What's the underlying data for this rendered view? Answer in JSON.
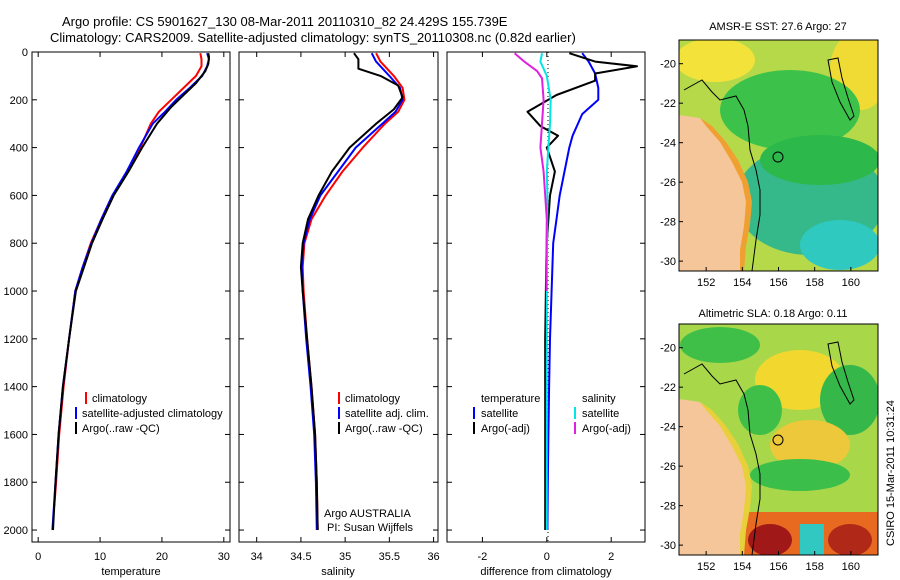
{
  "title": {
    "line1": "Argo profile: CS 5901627_130 08-Mar-2011 20110310_82 24.429S 155.739E",
    "line2": "Climatology: CARS2009. Satellite-adjusted climatology: synTS_20110308.nc (0.82d earlier)"
  },
  "colors": {
    "climatology": "#ff0000",
    "satellite": "#0000ff",
    "argo": "#000000",
    "salinity_satellite": "#00e5e5",
    "salinity_argo": "#e020e0",
    "land": "#f5c69a"
  },
  "icons": {
    "profile_marker": "circle-marker-icon"
  },
  "chart_data": [
    {
      "type": "line",
      "panel": "temperature",
      "xlabel": "temperature",
      "ylabel": "",
      "xlim": [
        -1,
        31
      ],
      "ylim": [
        2050,
        0
      ],
      "y_inverted": true,
      "xticks": [
        0,
        10,
        20,
        30
      ],
      "yticks": [
        0,
        200,
        400,
        600,
        800,
        1000,
        1200,
        1400,
        1600,
        1800,
        2000
      ],
      "legend": {
        "location": "lower-right",
        "entries": [
          "climatology",
          "satellite-adjusted climatology",
          "Argo(..raw -QC)"
        ]
      },
      "series": [
        {
          "name": "climatology",
          "color_key": "climatology",
          "points": [
            [
              26.2,
              5
            ],
            [
              26.4,
              30
            ],
            [
              26.4,
              60
            ],
            [
              25.5,
              100
            ],
            [
              23.5,
              150
            ],
            [
              21.5,
              200
            ],
            [
              19.5,
              250
            ],
            [
              18.2,
              300
            ],
            [
              16.5,
              400
            ],
            [
              14.5,
              500
            ],
            [
              12.0,
              600
            ],
            [
              10.2,
              700
            ],
            [
              8.5,
              800
            ],
            [
              7.2,
              900
            ],
            [
              6.0,
              1000
            ],
            [
              5.0,
              1200
            ],
            [
              4.1,
              1400
            ],
            [
              3.4,
              1600
            ],
            [
              2.9,
              1800
            ],
            [
              2.6,
              1900
            ]
          ]
        },
        {
          "name": "satellite-adjusted climatology",
          "color_key": "satellite",
          "points": [
            [
              27.3,
              5
            ],
            [
              27.6,
              30
            ],
            [
              27.3,
              60
            ],
            [
              26.5,
              100
            ],
            [
              24.5,
              150
            ],
            [
              22.3,
              200
            ],
            [
              20.5,
              250
            ],
            [
              18.5,
              300
            ],
            [
              16.3,
              400
            ],
            [
              14.3,
              500
            ],
            [
              12.0,
              600
            ],
            [
              10.2,
              700
            ],
            [
              8.6,
              800
            ],
            [
              7.2,
              900
            ],
            [
              6.0,
              1000
            ],
            [
              5.0,
              1200
            ],
            [
              4.0,
              1400
            ],
            [
              3.3,
              1600
            ],
            [
              2.8,
              1800
            ],
            [
              2.3,
              2000
            ]
          ]
        },
        {
          "name": "Argo(..raw -QC)",
          "color_key": "argo",
          "points": [
            [
              27.5,
              5
            ],
            [
              27.6,
              20
            ],
            [
              27.5,
              50
            ],
            [
              27.0,
              80
            ],
            [
              25.5,
              130
            ],
            [
              23.5,
              180
            ],
            [
              21.5,
              230
            ],
            [
              19.2,
              300
            ],
            [
              16.8,
              400
            ],
            [
              14.6,
              500
            ],
            [
              12.2,
              600
            ],
            [
              10.4,
              700
            ],
            [
              8.7,
              800
            ],
            [
              7.4,
              900
            ],
            [
              6.1,
              1000
            ],
            [
              5.0,
              1200
            ],
            [
              4.0,
              1400
            ],
            [
              3.3,
              1600
            ],
            [
              2.8,
              1800
            ],
            [
              2.4,
              2000
            ]
          ]
        }
      ]
    },
    {
      "type": "line",
      "panel": "salinity",
      "xlabel": "salinity",
      "ylabel": "",
      "xlim": [
        33.8,
        36.05
      ],
      "ylim": [
        2050,
        0
      ],
      "y_inverted": true,
      "xticks": [
        34,
        34.5,
        35,
        35.5,
        36
      ],
      "legend": {
        "location": "lower-right",
        "entries": [
          "climatology",
          "satellite adj. clim.",
          "Argo(..raw -QC)"
        ]
      },
      "annotations": [
        "Argo AUSTRALIA",
        "PI: Susan Wijffels"
      ],
      "series": [
        {
          "name": "climatology",
          "color_key": "climatology",
          "points": [
            [
              35.35,
              5
            ],
            [
              35.4,
              40
            ],
            [
              35.55,
              100
            ],
            [
              35.65,
              150
            ],
            [
              35.67,
              200
            ],
            [
              35.6,
              250
            ],
            [
              35.45,
              300
            ],
            [
              35.2,
              400
            ],
            [
              34.97,
              500
            ],
            [
              34.78,
              600
            ],
            [
              34.62,
              700
            ],
            [
              34.54,
              800
            ],
            [
              34.52,
              900
            ],
            [
              34.53,
              1000
            ],
            [
              34.57,
              1200
            ],
            [
              34.62,
              1400
            ],
            [
              34.66,
              1600
            ],
            [
              34.68,
              1800
            ],
            [
              34.69,
              2000
            ]
          ]
        },
        {
          "name": "satellite adj. clim.",
          "color_key": "satellite",
          "points": [
            [
              35.3,
              5
            ],
            [
              35.35,
              40
            ],
            [
              35.5,
              100
            ],
            [
              35.62,
              150
            ],
            [
              35.65,
              200
            ],
            [
              35.57,
              250
            ],
            [
              35.42,
              300
            ],
            [
              35.12,
              400
            ],
            [
              34.92,
              500
            ],
            [
              34.72,
              600
            ],
            [
              34.6,
              700
            ],
            [
              34.53,
              800
            ],
            [
              34.51,
              900
            ],
            [
              34.52,
              1000
            ],
            [
              34.56,
              1200
            ],
            [
              34.61,
              1400
            ],
            [
              34.65,
              1600
            ],
            [
              34.67,
              1800
            ],
            [
              34.68,
              2000
            ]
          ]
        },
        {
          "name": "Argo(..raw -QC)",
          "color_key": "argo",
          "points": [
            [
              35.1,
              5
            ],
            [
              35.15,
              30
            ],
            [
              35.15,
              70
            ],
            [
              35.4,
              100
            ],
            [
              35.6,
              140
            ],
            [
              35.65,
              190
            ],
            [
              35.55,
              240
            ],
            [
              35.35,
              300
            ],
            [
              35.05,
              400
            ],
            [
              34.85,
              500
            ],
            [
              34.7,
              600
            ],
            [
              34.58,
              700
            ],
            [
              34.52,
              800
            ],
            [
              34.5,
              900
            ],
            [
              34.52,
              1000
            ],
            [
              34.57,
              1200
            ],
            [
              34.62,
              1400
            ],
            [
              34.66,
              1600
            ],
            [
              34.68,
              1800
            ],
            [
              34.69,
              2000
            ]
          ]
        }
      ]
    },
    {
      "type": "line",
      "panel": "difference",
      "xlabel": "difference from climatology",
      "ylabel": "",
      "xlim": [
        -3.1,
        3.05
      ],
      "ylim": [
        2050,
        0
      ],
      "y_inverted": true,
      "xticks": [
        -2,
        0,
        2
      ],
      "zero_line": "dotted",
      "legend": {
        "location": "lower-center",
        "columns": [
          {
            "header": "temperature",
            "entries": [
              "satellite",
              "Argo(-adj)"
            ]
          },
          {
            "header": "salinity",
            "entries": [
              "satellite",
              "Argo(-adj)"
            ]
          }
        ]
      },
      "series": [
        {
          "name": "temperature satellite",
          "color_key": "satellite",
          "points": [
            [
              1.1,
              5
            ],
            [
              1.3,
              40
            ],
            [
              1.5,
              90
            ],
            [
              1.6,
              150
            ],
            [
              1.6,
              200
            ],
            [
              1.1,
              260
            ],
            [
              0.8,
              350
            ],
            [
              0.7,
              400
            ],
            [
              0.55,
              500
            ],
            [
              0.4,
              600
            ],
            [
              0.3,
              700
            ],
            [
              0.2,
              800
            ],
            [
              0.15,
              1000
            ],
            [
              0.1,
              1200
            ],
            [
              0.07,
              1400
            ],
            [
              0.05,
              1600
            ],
            [
              0.03,
              1800
            ],
            [
              0.02,
              2000
            ]
          ]
        },
        {
          "name": "temperature Argo(-adj)",
          "color_key": "argo",
          "points": [
            [
              0.7,
              5
            ],
            [
              1.5,
              40
            ],
            [
              2.8,
              60
            ],
            [
              1.5,
              90
            ],
            [
              1.5,
              120
            ],
            [
              0.3,
              180
            ],
            [
              -0.6,
              250
            ],
            [
              -0.2,
              310
            ],
            [
              0.35,
              350
            ],
            [
              0.0,
              400
            ],
            [
              0.25,
              500
            ],
            [
              0.1,
              600
            ],
            [
              0.05,
              700
            ],
            [
              0.0,
              800
            ],
            [
              -0.02,
              900
            ],
            [
              -0.05,
              1200
            ],
            [
              -0.05,
              1400
            ],
            [
              -0.05,
              1600
            ],
            [
              -0.05,
              1800
            ],
            [
              -0.05,
              2000
            ]
          ]
        },
        {
          "name": "salinity satellite",
          "color_key": "salinity_satellite",
          "points": [
            [
              -0.15,
              5
            ],
            [
              -0.2,
              40
            ],
            [
              0.0,
              100
            ],
            [
              0.12,
              200
            ],
            [
              0.1,
              300
            ],
            [
              0.05,
              400
            ],
            [
              0.0,
              500
            ],
            [
              0.02,
              600
            ],
            [
              0.01,
              800
            ],
            [
              0.0,
              1000
            ],
            [
              0.0,
              1400
            ],
            [
              0.0,
              2000
            ]
          ]
        },
        {
          "name": "salinity Argo(-adj)",
          "color_key": "salinity_argo",
          "points": [
            [
              -1.0,
              5
            ],
            [
              -0.7,
              40
            ],
            [
              -0.3,
              80
            ],
            [
              -0.15,
              110
            ],
            [
              -0.1,
              200
            ],
            [
              -0.15,
              300
            ],
            [
              -0.2,
              400
            ],
            [
              -0.1,
              500
            ],
            [
              -0.05,
              600
            ],
            [
              0.0,
              700
            ],
            [
              -0.02,
              900
            ],
            [
              -0.01,
              1000
            ]
          ]
        }
      ]
    },
    {
      "type": "heatmap",
      "panel": "sst-map",
      "title": "AMSR-E SST: 27.6 Argo: 27",
      "xlim": [
        150.5,
        161.5
      ],
      "ylim": [
        -30.5,
        -18.8
      ],
      "xticks": [
        152,
        154,
        156,
        158,
        160
      ],
      "yticks": [
        -20,
        -22,
        -24,
        -26,
        -28,
        -30
      ],
      "marker": [
        155.739,
        -24.429
      ]
    },
    {
      "type": "heatmap",
      "panel": "sla-map",
      "title": "Altimetric SLA: 0.18 Argo: 0.11",
      "xlim": [
        150.5,
        161.5
      ],
      "ylim": [
        -30.5,
        -18.8
      ],
      "xticks": [
        152,
        154,
        156,
        158,
        160
      ],
      "yticks": [
        -20,
        -22,
        -24,
        -26,
        -28,
        -30
      ],
      "marker": [
        155.739,
        -24.429
      ]
    }
  ],
  "footer": {
    "credit": "CSIRO 15-Mar-2011 10:31:24"
  }
}
